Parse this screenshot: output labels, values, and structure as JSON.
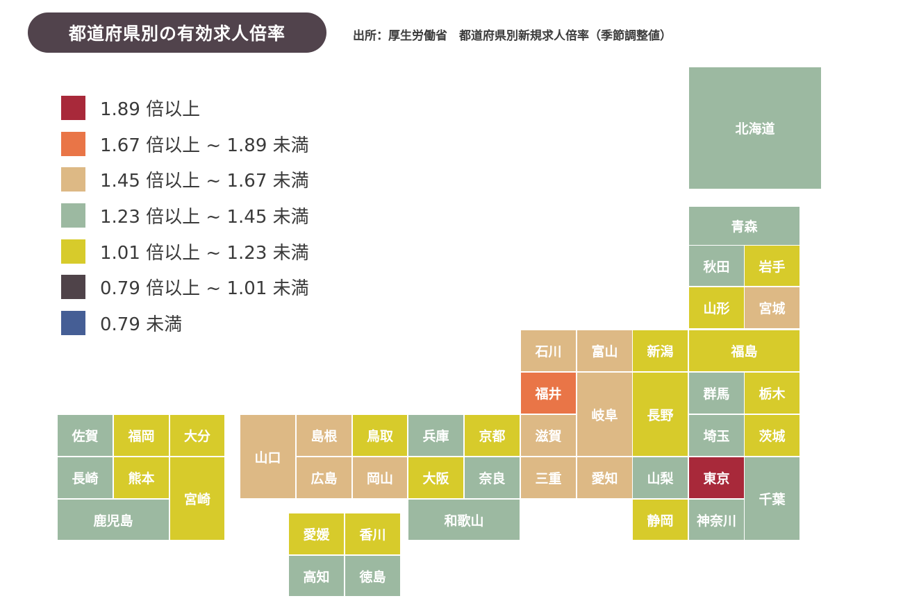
{
  "title": "都道府県別の有効求人倍率",
  "source": "出所：厚生労働省　都道府県別新規求人倍率（季節調整値）",
  "colors": {
    "c189": "#a8293a",
    "c167": "#e97547",
    "c145": "#ddb985",
    "c123": "#9cb9a1",
    "c101": "#d7cb2b",
    "c079": "#4f4349",
    "clow": "#455e95"
  },
  "legend": [
    {
      "label": "1.89 倍以上",
      "color": "#a8293a"
    },
    {
      "label": "1.67 倍以上 ~ 1.89 未満",
      "color": "#e97547"
    },
    {
      "label": "1.45 倍以上 ~ 1.67 未満",
      "color": "#ddb985"
    },
    {
      "label": "1.23 倍以上 ~ 1.45 未満",
      "color": "#9cb9a1"
    },
    {
      "label": "1.01 倍以上 ~ 1.23 未満",
      "color": "#d7cb2b"
    },
    {
      "label": "0.79 倍以上 ~ 1.01 未満",
      "color": "#4f4349"
    },
    {
      "label": "0.79 未満",
      "color": "#455e95"
    }
  ],
  "prefectures": {
    "hokkaido": "北海道",
    "aomori": "青森",
    "akita": "秋田",
    "iwate": "岩手",
    "yamagata": "山形",
    "miyagi": "宮城",
    "ishikawa": "石川",
    "toyama": "富山",
    "niigata": "新潟",
    "fukushima": "福島",
    "fukui": "福井",
    "gifu": "岐阜",
    "nagano": "長野",
    "gunma": "群馬",
    "tochigi": "栃木",
    "saitama": "埼玉",
    "ibaraki": "茨城",
    "shiga": "滋賀",
    "mie": "三重",
    "aichi": "愛知",
    "yamanashi": "山梨",
    "tokyo": "東京",
    "chiba": "千葉",
    "shizuoka": "静岡",
    "kanagawa": "神奈川",
    "hyogo": "兵庫",
    "kyoto": "京都",
    "osaka": "大阪",
    "nara": "奈良",
    "wakayama": "和歌山",
    "shimane": "島根",
    "tottori": "鳥取",
    "hiroshima": "広島",
    "okayama": "岡山",
    "yamaguchi": "山口",
    "ehime": "愛媛",
    "kagawa": "香川",
    "kochi": "高知",
    "tokushima": "徳島",
    "saga": "佐賀",
    "fukuoka": "福岡",
    "oita": "大分",
    "nagasaki": "長崎",
    "kumamoto": "熊本",
    "miyazaki": "宮崎",
    "kagoshima": "鹿児島"
  }
}
